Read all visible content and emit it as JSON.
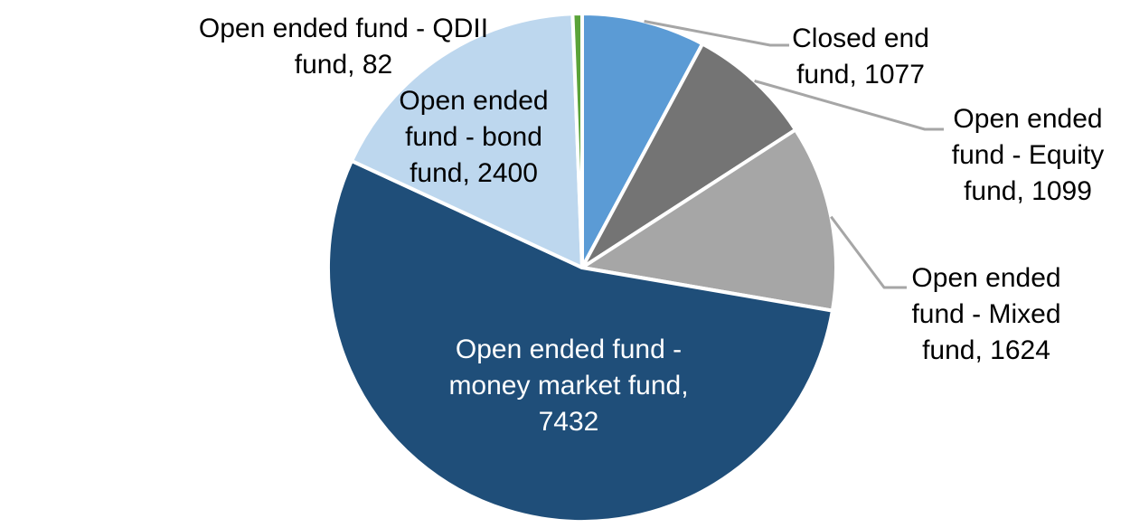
{
  "chart_data": {
    "type": "pie",
    "title": "",
    "direction": "clockwise",
    "start_angle_deg": 0,
    "total": 13714,
    "background_color": "#FFFFFF",
    "slice_border_color": "#FFFFFF",
    "leader_line_color": "#A6A6A6",
    "label_text_color": "#000000",
    "inside_label_text_color": "#FFFFFF",
    "slices": [
      {
        "label": "Closed end fund",
        "value": 1077,
        "color": "#5B9BD5",
        "label_lines": [
          "Closed end",
          "fund, 1077"
        ],
        "label_placement": "outside-with-leader"
      },
      {
        "label": "Open ended fund - Equity fund",
        "value": 1099,
        "color": "#747474",
        "label_lines": [
          "Open ended",
          "fund - Equity",
          "fund, 1099"
        ],
        "label_placement": "outside-with-leader"
      },
      {
        "label": "Open ended fund - Mixed fund",
        "value": 1624,
        "color": "#A6A6A6",
        "label_lines": [
          "Open ended",
          "fund - Mixed",
          "fund, 1624"
        ],
        "label_placement": "outside-with-leader"
      },
      {
        "label": "Open ended fund - money market fund",
        "value": 7432,
        "color": "#1F4E79",
        "label_lines": [
          "Open ended fund -",
          "money market fund,",
          "7432"
        ],
        "label_placement": "inside"
      },
      {
        "label": "Open ended fund - bond fund",
        "value": 2400,
        "color": "#BDD7EE",
        "label_lines": [
          "Open ended",
          "fund - bond",
          "fund, 2400"
        ],
        "label_placement": "outside"
      },
      {
        "label": "Open ended fund - QDII fund",
        "value": 82,
        "color": "#5AA339",
        "label_lines": [
          "Open ended fund - QDII",
          "fund, 82"
        ],
        "label_placement": "outside"
      }
    ]
  }
}
